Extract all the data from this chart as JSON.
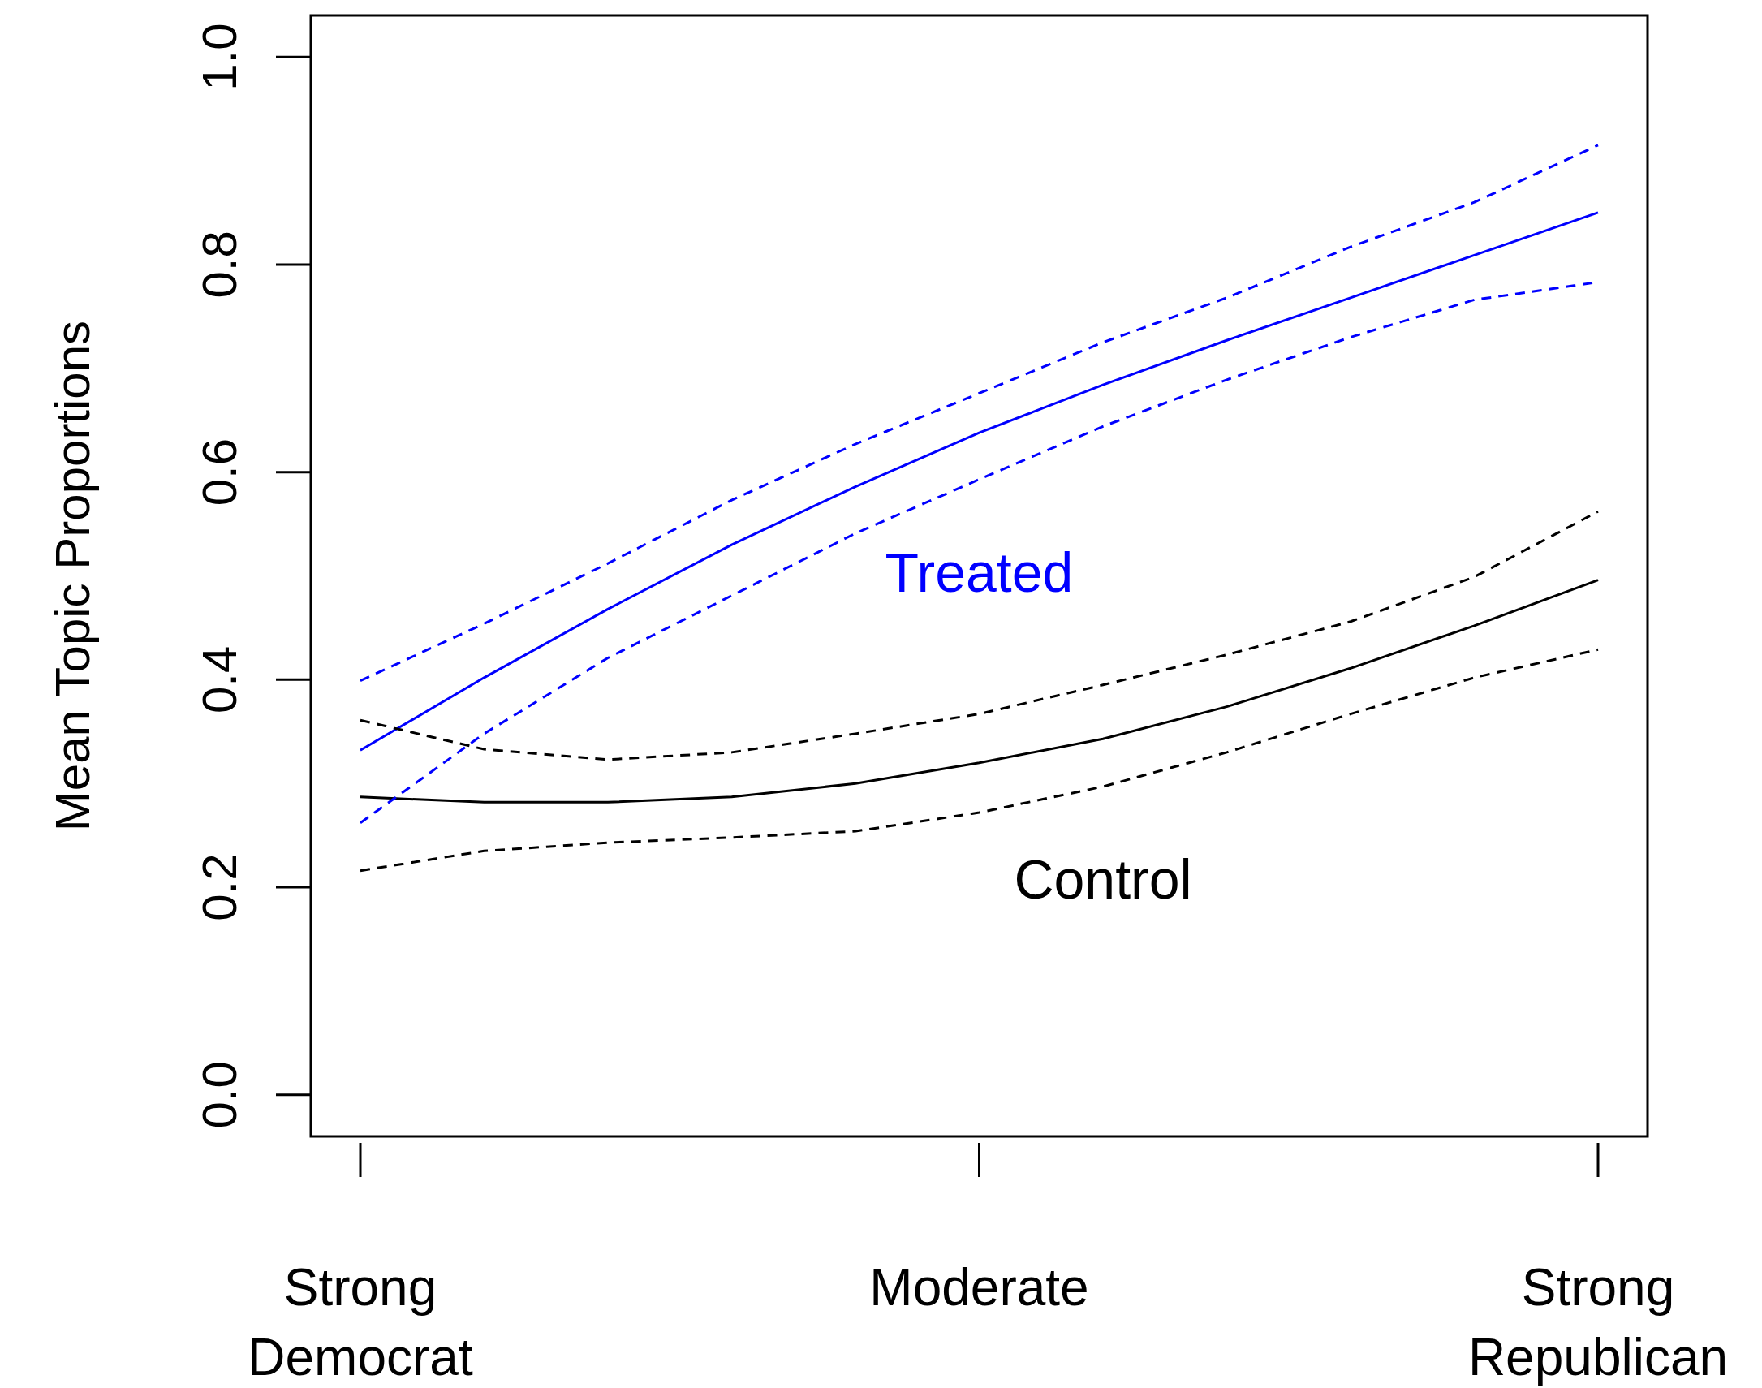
{
  "chart_data": {
    "type": "line",
    "ylabel": "Mean Topic Proportions",
    "categories": [
      "Strong Democrat",
      null,
      null,
      null,
      null,
      "Moderate",
      null,
      null,
      null,
      null,
      "Strong Republican"
    ],
    "ylim": [
      -0.04,
      1.04
    ],
    "yticks": [
      {
        "value": 0,
        "label": "0.0"
      },
      {
        "value": 0.2,
        "label": "0.2"
      },
      {
        "value": 0.4,
        "label": "0.4"
      },
      {
        "value": 0.6,
        "label": "0.6"
      },
      {
        "value": 0.8,
        "label": "0.8"
      },
      {
        "value": 1,
        "label": "1.0"
      }
    ],
    "series": [
      {
        "color": "#0000ff",
        "values": [
          0.332,
          0.402,
          0.468,
          0.53,
          0.586,
          0.638,
          0.684,
          0.727,
          0.768,
          0.809,
          0.85
        ]
      },
      {
        "color": "#000000",
        "values": [
          0.287,
          0.282,
          0.282,
          0.287,
          0.3,
          0.32,
          0.343,
          0.374,
          0.411,
          0.452,
          0.496
        ]
      },
      {
        "color": "#0000ff",
        "line_style": "dashed",
        "values": [
          0.399,
          0.454,
          0.512,
          0.573,
          0.627,
          0.676,
          0.725,
          0.768,
          0.817,
          0.86,
          0.915
        ]
      },
      {
        "color": "#0000ff",
        "line_style": "dashed",
        "values": [
          0.262,
          0.348,
          0.421,
          0.481,
          0.541,
          0.593,
          0.644,
          0.689,
          0.73,
          0.766,
          0.783
        ]
      },
      {
        "color": "#000000",
        "line_style": "dashed",
        "values": [
          0.361,
          0.333,
          0.323,
          0.33,
          0.348,
          0.367,
          0.395,
          0.424,
          0.456,
          0.499,
          0.562
        ]
      },
      {
        "color": "#000000",
        "line_style": "dashed",
        "values": [
          0.216,
          0.235,
          0.243,
          0.248,
          0.254,
          0.272,
          0.297,
          0.33,
          0.367,
          0.402,
          0.429
        ]
      }
    ],
    "annotations": [
      "Treated",
      "Control"
    ],
    "grid": false,
    "line_style": "solid",
    "marker": "none"
  }
}
